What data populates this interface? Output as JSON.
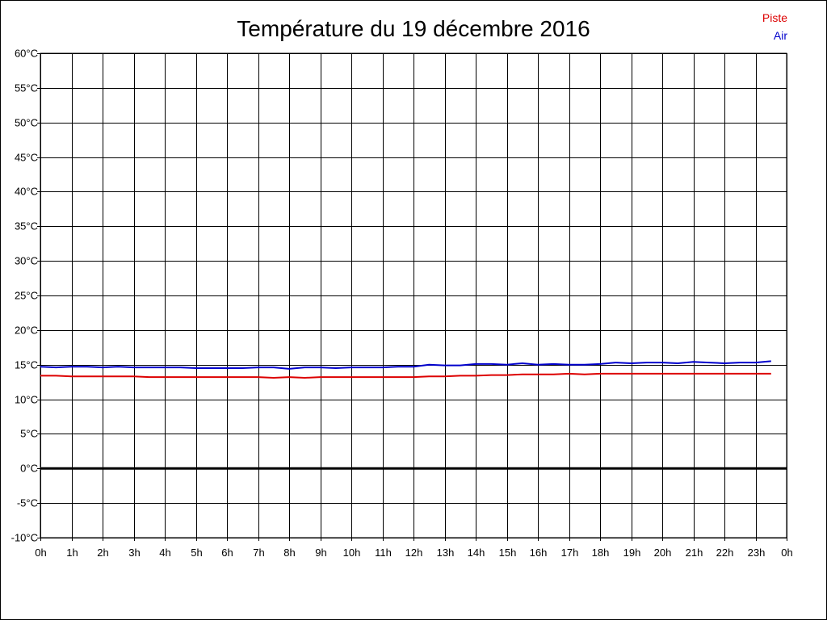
{
  "chart_data": {
    "type": "line",
    "title": "Température du 19 décembre 2016",
    "xlabel": "",
    "ylabel": "",
    "x_tick_labels": [
      "0h",
      "1h",
      "2h",
      "3h",
      "4h",
      "5h",
      "6h",
      "7h",
      "8h",
      "9h",
      "10h",
      "11h",
      "12h",
      "13h",
      "14h",
      "15h",
      "16h",
      "17h",
      "18h",
      "19h",
      "20h",
      "21h",
      "22h",
      "23h",
      "0h"
    ],
    "y_tick_labels": [
      "-10°C",
      "-5°C",
      "0°C",
      "5°C",
      "10°C",
      "15°C",
      "20°C",
      "25°C",
      "30°C",
      "35°C",
      "40°C",
      "45°C",
      "50°C",
      "55°C",
      "60°C"
    ],
    "xlim": [
      0,
      24
    ],
    "ylim": [
      -10,
      60
    ],
    "y_step": 5,
    "grid": true,
    "zero_line": true,
    "legend": "top-right",
    "series": [
      {
        "name": "Piste",
        "color": "#dd0000",
        "x": [
          0,
          0.5,
          1,
          1.5,
          2,
          2.5,
          3,
          3.5,
          4,
          4.5,
          5,
          5.5,
          6,
          6.5,
          7,
          7.5,
          8,
          8.5,
          9,
          9.5,
          10,
          10.5,
          11,
          11.5,
          12,
          12.5,
          13,
          13.5,
          14,
          14.5,
          15,
          15.5,
          16,
          16.5,
          17,
          17.5,
          18,
          18.5,
          19,
          19.5,
          20,
          20.5,
          21,
          21.5,
          22,
          22.5,
          23,
          23.5
        ],
        "values": [
          13.4,
          13.4,
          13.3,
          13.3,
          13.3,
          13.3,
          13.3,
          13.2,
          13.2,
          13.2,
          13.2,
          13.2,
          13.2,
          13.2,
          13.2,
          13.1,
          13.2,
          13.1,
          13.2,
          13.2,
          13.2,
          13.2,
          13.2,
          13.2,
          13.2,
          13.3,
          13.3,
          13.4,
          13.4,
          13.5,
          13.5,
          13.6,
          13.6,
          13.6,
          13.7,
          13.6,
          13.7,
          13.7,
          13.7,
          13.7,
          13.7,
          13.7,
          13.7,
          13.7,
          13.7,
          13.7,
          13.7,
          13.7
        ]
      },
      {
        "name": "Air",
        "color": "#0000cc",
        "x": [
          0,
          0.5,
          1,
          1.5,
          2,
          2.5,
          3,
          3.5,
          4,
          4.5,
          5,
          5.5,
          6,
          6.5,
          7,
          7.5,
          8,
          8.5,
          9,
          9.5,
          10,
          10.5,
          11,
          11.5,
          12,
          12.5,
          13,
          13.5,
          14,
          14.5,
          15,
          15.5,
          16,
          16.5,
          17,
          17.5,
          18,
          18.5,
          19,
          19.5,
          20,
          20.5,
          21,
          21.5,
          22,
          22.5,
          23,
          23.5
        ],
        "values": [
          14.7,
          14.6,
          14.7,
          14.7,
          14.6,
          14.7,
          14.6,
          14.6,
          14.6,
          14.6,
          14.5,
          14.5,
          14.5,
          14.5,
          14.6,
          14.6,
          14.4,
          14.6,
          14.6,
          14.5,
          14.6,
          14.6,
          14.6,
          14.7,
          14.7,
          15.0,
          14.9,
          14.9,
          15.1,
          15.1,
          15.0,
          15.2,
          15.0,
          15.1,
          15.0,
          15.0,
          15.1,
          15.3,
          15.2,
          15.3,
          15.3,
          15.2,
          15.4,
          15.3,
          15.2,
          15.3,
          15.3,
          15.5
        ]
      }
    ]
  }
}
